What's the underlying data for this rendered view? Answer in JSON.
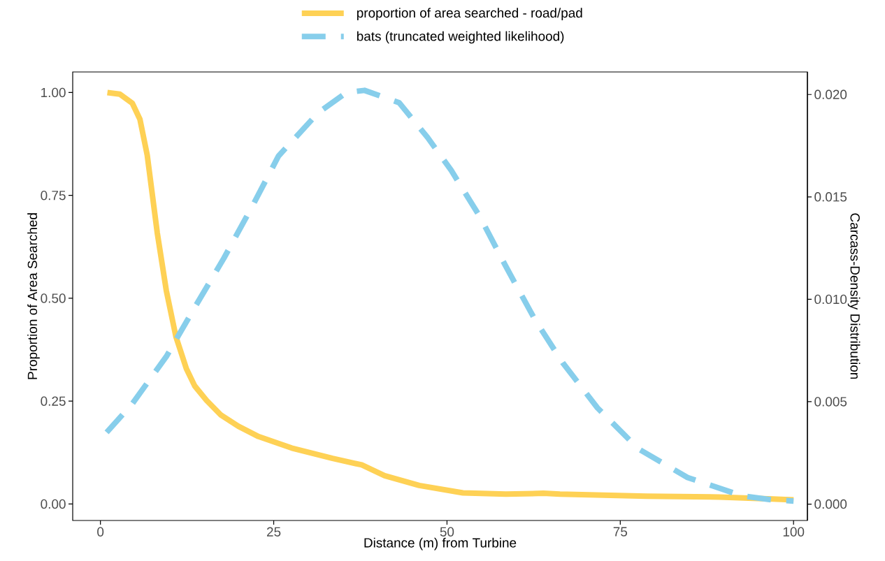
{
  "chart_data": {
    "type": "line",
    "xlabel": "Distance (m) from Turbine",
    "ylabel": "Proportion of Area Searched",
    "y2label": "Carcass-Density Distribution",
    "xlim": [
      -4,
      102
    ],
    "xticks": [
      0,
      25,
      50,
      75,
      100
    ],
    "ylim": [
      -0.04,
      1.05
    ],
    "yticks": [
      {
        "value": 0,
        "label": "0.00"
      },
      {
        "value": 0.25,
        "label": "0.25"
      },
      {
        "value": 0.5,
        "label": "0.50"
      },
      {
        "value": 0.75,
        "label": "0.75"
      },
      {
        "value": 1,
        "label": "1.00"
      }
    ],
    "y2lim": [
      -0.0008,
      0.0211
    ],
    "y2ticks": [
      {
        "value": 0,
        "label": "0.000"
      },
      {
        "value": 0.005,
        "label": "0.005"
      },
      {
        "value": 0.01,
        "label": "0.010"
      },
      {
        "value": 0.015,
        "label": "0.015"
      },
      {
        "value": 0.02,
        "label": "0.020"
      }
    ],
    "legend": "top",
    "series": [
      {
        "name": "proportion of area searched - road/pad",
        "color": "#fed155",
        "line_style": "solid",
        "x": [
          1.0,
          2.8,
          4.6,
          5.7,
          6.75,
          8.2,
          9.5,
          10.9,
          12.4,
          13.6,
          15.3,
          17.4,
          19.9,
          22.8,
          25.7,
          27.6,
          33.5,
          37.7,
          41,
          46,
          52.3,
          58.5,
          63.9,
          66.3,
          78.8,
          89.3,
          97,
          100
        ],
        "values": [
          1.0,
          0.996,
          0.974,
          0.935,
          0.848,
          0.659,
          0.519,
          0.406,
          0.329,
          0.287,
          0.252,
          0.216,
          0.189,
          0.164,
          0.147,
          0.136,
          0.111,
          0.095,
          0.069,
          0.045,
          0.027,
          0.024,
          0.026,
          0.024,
          0.019,
          0.017,
          0.012,
          0.01
        ]
      },
      {
        "name": "bats (truncated weighted likelihood)",
        "color": "#87ceeb",
        "line_style": "dashed",
        "axis": "y2",
        "x": [
          0.9,
          4.6,
          9.5,
          13.6,
          17.8,
          22,
          25.7,
          31.4,
          35.5,
          38.1,
          43.1,
          47.2,
          50.6,
          54.8,
          58.5,
          62.7,
          66.7,
          71.7,
          77.6,
          84.7,
          92.6,
          97,
          100
        ],
        "values": [
          0.0035,
          0.0049,
          0.0072,
          0.0096,
          0.012,
          0.0146,
          0.017,
          0.0191,
          0.0201,
          0.0202,
          0.0196,
          0.0179,
          0.0163,
          0.014,
          0.0116,
          0.009,
          0.0069,
          0.0047,
          0.0027,
          0.0013,
          0.0004,
          0.0002,
          0.00015
        ]
      }
    ]
  }
}
